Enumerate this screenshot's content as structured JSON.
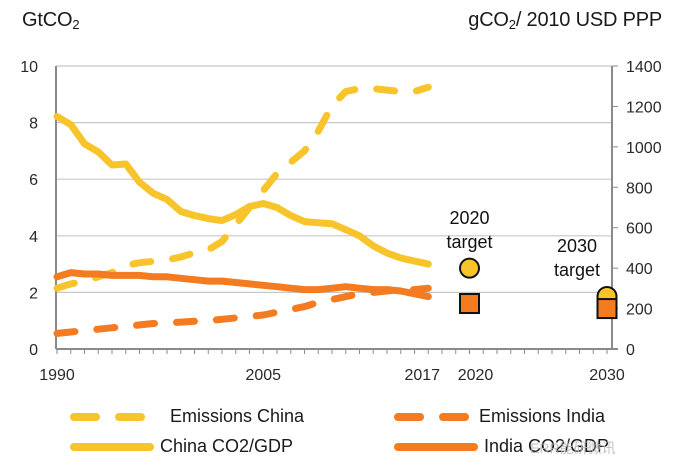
{
  "chart_data": {
    "type": "line",
    "title": "",
    "left_axis_label": "GtCO",
    "left_axis_label_sub": "2",
    "right_axis_label_pre": "gCO",
    "right_axis_label_sub": "2",
    "right_axis_label_post": "/ 2010 USD PPP",
    "ylim_left": [
      0,
      10
    ],
    "ylim_right": [
      0,
      1400
    ],
    "xlim": [
      1990,
      2030
    ],
    "left_ticks": [
      "0",
      "2",
      "4",
      "6",
      "8",
      "10"
    ],
    "left_tick_values": [
      0,
      2,
      4,
      6,
      8,
      10
    ],
    "right_ticks": [
      "0",
      "200",
      "400",
      "600",
      "800",
      "1000",
      "1200",
      "1400"
    ],
    "right_tick_values": [
      0,
      200,
      400,
      600,
      800,
      1000,
      1200,
      1400
    ],
    "x_tick_labels": [
      {
        "label": "1990",
        "year": 1990
      },
      {
        "label": "2005",
        "year": 2005
      },
      {
        "label": "2017",
        "year": 2017
      },
      {
        "label": "2020",
        "year": 2020
      },
      {
        "label": "2030",
        "year": 2030
      }
    ],
    "grid": "horizontal",
    "legend_position": "bottom",
    "colors": {
      "china": "#F7C52B",
      "india": "#F47B20",
      "grid": "#c8c8c8",
      "axis": "#8a8a8a"
    },
    "x": [
      1990,
      1991,
      1992,
      1993,
      1994,
      1995,
      1996,
      1997,
      1998,
      1999,
      2000,
      2001,
      2002,
      2003,
      2004,
      2005,
      2006,
      2007,
      2008,
      2009,
      2010,
      2011,
      2012,
      2013,
      2014,
      2015,
      2016,
      2017
    ],
    "series": [
      {
        "name": "Emissions China",
        "axis": "left",
        "style": "dashed",
        "color_key": "china",
        "values": [
          2.15,
          2.3,
          2.4,
          2.55,
          2.7,
          2.95,
          3.05,
          3.1,
          3.15,
          3.25,
          3.4,
          3.5,
          3.8,
          4.4,
          5.0,
          5.6,
          6.2,
          6.6,
          7.0,
          7.7,
          8.6,
          9.1,
          9.2,
          9.2,
          9.15,
          9.1,
          9.1,
          9.25
        ]
      },
      {
        "name": "Emissions India",
        "axis": "left",
        "style": "dashed",
        "color_key": "india",
        "values": [
          0.55,
          0.6,
          0.65,
          0.7,
          0.75,
          0.8,
          0.85,
          0.9,
          0.92,
          0.95,
          0.98,
          1.0,
          1.05,
          1.1,
          1.15,
          1.2,
          1.3,
          1.4,
          1.5,
          1.65,
          1.75,
          1.85,
          1.95,
          2.0,
          2.05,
          2.1,
          2.1,
          2.15
        ]
      },
      {
        "name": "China CO2/GDP",
        "axis": "right",
        "style": "solid",
        "color_key": "china",
        "values": [
          1150,
          1110,
          1015,
          975,
          910,
          915,
          825,
          770,
          740,
          680,
          660,
          645,
          635,
          665,
          705,
          720,
          700,
          660,
          630,
          625,
          620,
          590,
          560,
          510,
          475,
          450,
          435,
          420
        ]
      },
      {
        "name": "India CO2/GDP",
        "axis": "right",
        "style": "solid",
        "color_key": "india",
        "values": [
          357,
          378,
          371,
          371,
          364,
          364,
          364,
          357,
          357,
          350,
          343,
          336,
          336,
          329,
          322,
          315,
          308,
          301,
          294,
          294,
          301,
          308,
          301,
          294,
          294,
          287,
          273,
          259
        ]
      }
    ],
    "targets": [
      {
        "label_line1": "2020",
        "label_line2": "target",
        "year": 2020,
        "china_co2_gdp": 400,
        "india_co2_gdp": 225
      },
      {
        "label_line1": "2030",
        "label_line2": "target",
        "year": 2030,
        "china_co2_gdp": 260,
        "india_co2_gdp": 200
      }
    ]
  },
  "legend": [
    {
      "label": "Emissions China",
      "style": "dashed",
      "color": "#F7C52B"
    },
    {
      "label": "China CO2/GDP",
      "style": "solid",
      "color": "#F7C52B"
    },
    {
      "label": "Emissions India",
      "style": "dashed",
      "color": "#F47B20"
    },
    {
      "label": "India CO2/GDP",
      "style": "solid",
      "color": "#F47B20"
    }
  ],
  "watermark": "ERR能研微讯"
}
